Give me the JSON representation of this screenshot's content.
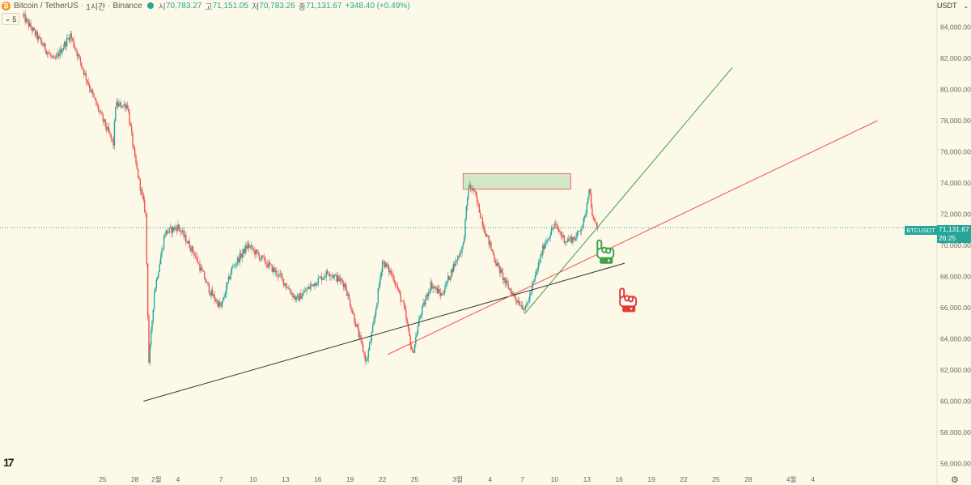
{
  "header": {
    "symbol_name": "Bitcoin / TetherUS",
    "interval": "1시간",
    "exchange": "Binance",
    "open_label": "시",
    "open": "70,783.27",
    "high_label": "고",
    "high": "71,151.05",
    "low_label": "저",
    "low": "70,783.26",
    "close_label": "종",
    "close": "71,131.67",
    "change": "+348.40 (+0.49%)",
    "coin_glyph": "₿"
  },
  "indicator_toggle": {
    "count": "5",
    "icon": "chevron-down-icon"
  },
  "currency": "USDT",
  "price_tag": {
    "symbol": "BTCUSDT",
    "price": "71,131.67",
    "countdown": "26:25"
  },
  "settings_icon": "gear-icon",
  "logo_text": "17",
  "colors": {
    "up": "#26a69a",
    "down": "#ef5350",
    "bg": "#fdf9e8"
  },
  "chart_data": {
    "type": "candlestick",
    "y_axis": {
      "ylim": [
        55500,
        85500
      ],
      "ticks": [
        56000,
        58000,
        60000,
        62000,
        64000,
        66000,
        68000,
        70000,
        72000,
        74000,
        76000,
        78000,
        80000,
        82000,
        84000
      ],
      "tick_labels": [
        "56,000.00",
        "58,000.00",
        "60,000.00",
        "62,000.00",
        "64,000.00",
        "66,000.00",
        "68,000.00",
        "70,000.00",
        "72,000.00",
        "74,000.00",
        "76,000.00",
        "78,000.00",
        "80,000.00",
        "82,000.00",
        "84,000.00"
      ]
    },
    "x_axis": {
      "ticks": [
        "25",
        "28",
        "2월",
        "4",
        "7",
        "10",
        "13",
        "16",
        "19",
        "22",
        "25",
        "3월",
        "4",
        "7",
        "10",
        "13",
        "16",
        "19",
        "22",
        "25",
        "28",
        "4월",
        "4"
      ]
    },
    "price_path": [
      [
        -11.5,
        84800
      ],
      [
        -8.5,
        81800
      ],
      [
        -7,
        83500
      ],
      [
        -4.7,
        79200
      ],
      [
        -3,
        76500
      ],
      [
        -2.8,
        79000
      ],
      [
        -1.7,
        79000
      ],
      [
        -1,
        75500
      ],
      [
        0,
        72000
      ],
      [
        0.3,
        62500
      ],
      [
        0.8,
        67000
      ],
      [
        1.8,
        70800
      ],
      [
        3,
        71200
      ],
      [
        4.5,
        69500
      ],
      [
        6,
        67000
      ],
      [
        7,
        66000
      ],
      [
        8,
        68500
      ],
      [
        9.5,
        70000
      ],
      [
        11,
        69000
      ],
      [
        12.5,
        68000
      ],
      [
        14,
        66500
      ],
      [
        15.5,
        67500
      ],
      [
        17,
        68300
      ],
      [
        18.5,
        67500
      ],
      [
        19.5,
        65000
      ],
      [
        20.5,
        62500
      ],
      [
        21.2,
        65000
      ],
      [
        22,
        69000
      ],
      [
        23,
        68000
      ],
      [
        24,
        66000
      ],
      [
        24.8,
        63000
      ],
      [
        25.5,
        65500
      ],
      [
        26.5,
        67500
      ],
      [
        27.5,
        66800
      ],
      [
        28.5,
        68500
      ],
      [
        29.5,
        70000
      ],
      [
        30,
        73800
      ],
      [
        30.5,
        73500
      ],
      [
        31.5,
        71000
      ],
      [
        32.5,
        69000
      ],
      [
        33.5,
        67500
      ],
      [
        34.5,
        66500
      ],
      [
        35.3,
        65900
      ],
      [
        36,
        67500
      ],
      [
        37,
        70000
      ],
      [
        38,
        71300
      ],
      [
        39,
        70300
      ],
      [
        40,
        70500
      ],
      [
        40.8,
        71700
      ],
      [
        41.2,
        73800
      ],
      [
        41.6,
        71500
      ],
      [
        42,
        71100
      ]
    ],
    "trendlines": [
      {
        "color": "#333333",
        "from": [
          -0.2,
          60000
        ],
        "to": [
          44.5,
          68850
        ]
      },
      {
        "color": "#ef5350",
        "from": [
          22.5,
          63000
        ],
        "to": [
          68,
          78000
        ]
      },
      {
        "color": "#43a047",
        "from": [
          35.2,
          65600
        ],
        "to": [
          54.5,
          81400
        ]
      }
    ],
    "zones": [
      {
        "x": [
          29.5,
          39.5
        ],
        "y": [
          73600,
          74600
        ]
      }
    ],
    "annotations": [
      {
        "icon": "green-hand-icon",
        "x": 42.5,
        "y": 69600
      },
      {
        "icon": "red-hand-icon",
        "x": 44.6,
        "y": 66500
      }
    ]
  }
}
